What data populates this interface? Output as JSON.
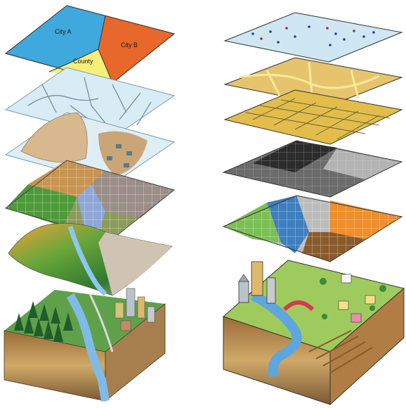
{
  "left_stack": {
    "boundary_layer": {
      "labels": {
        "city_a": "City A",
        "city_b": "City B",
        "county": "County"
      },
      "colors": {
        "city_a": "#3fa8dd",
        "city_b": "#e8672b",
        "county": "#f6ef7a"
      }
    },
    "layers": [
      "administrative-boundaries",
      "road-network",
      "land-parcels",
      "land-use-grid",
      "terrain-surface",
      "landscape-block"
    ]
  },
  "right_stack": {
    "layers": [
      "point-data",
      "land-parcels",
      "street-network",
      "elevation-raster",
      "land-cover-raster",
      "city-block"
    ]
  },
  "palette": {
    "sky_blue": "#cfe7f2",
    "parchment": "#e6c46e",
    "forest": "#2f7a2f",
    "soil": "#c89b55",
    "river": "#6fb0e0"
  }
}
